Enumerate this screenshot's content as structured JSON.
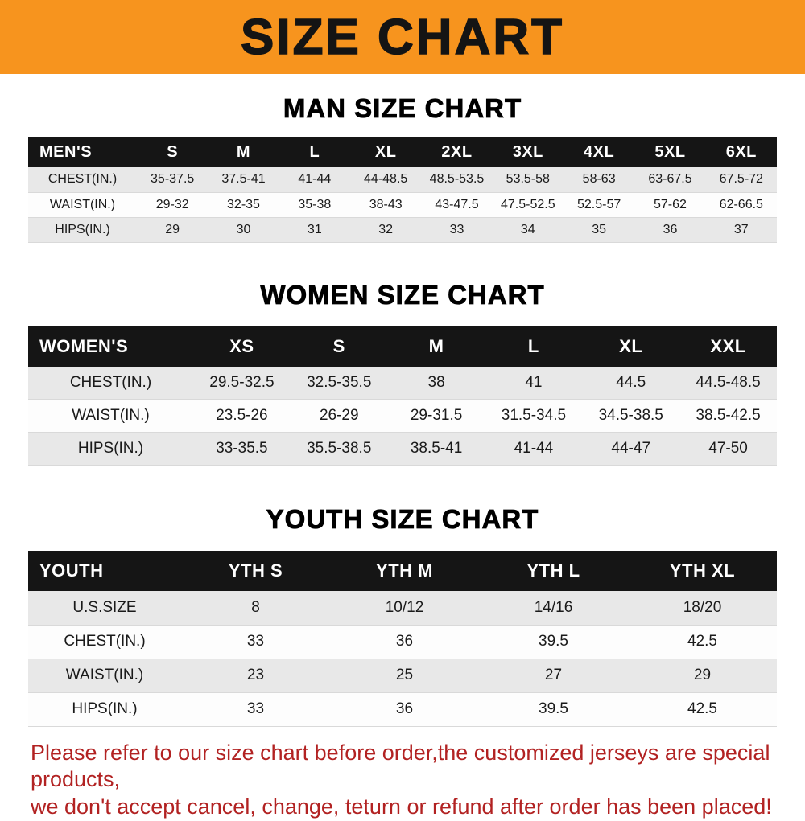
{
  "banner": {
    "title": "SIZE CHART"
  },
  "colors": {
    "banner_bg": "#f7941e",
    "table_header_bg": "#151515",
    "row_alt_bg": "#e8e8e8",
    "disclaimer_text": "#b22222"
  },
  "sections": {
    "men": {
      "heading": "MAN SIZE CHART",
      "table": {
        "header": [
          "MEN'S",
          "S",
          "M",
          "L",
          "XL",
          "2XL",
          "3XL",
          "4XL",
          "5XL",
          "6XL"
        ],
        "rows": [
          [
            "CHEST(IN.)",
            "35-37.5",
            "37.5-41",
            "41-44",
            "44-48.5",
            "48.5-53.5",
            "53.5-58",
            "58-63",
            "63-67.5",
            "67.5-72"
          ],
          [
            "WAIST(IN.)",
            "29-32",
            "32-35",
            "35-38",
            "38-43",
            "43-47.5",
            "47.5-52.5",
            "52.5-57",
            "57-62",
            "62-66.5"
          ],
          [
            "HIPS(IN.)",
            "29",
            "30",
            "31",
            "32",
            "33",
            "34",
            "35",
            "36",
            "37"
          ]
        ]
      }
    },
    "women": {
      "heading": "WOMEN SIZE CHART",
      "table": {
        "header": [
          "WOMEN'S",
          "XS",
          "S",
          "M",
          "L",
          "XL",
          "XXL"
        ],
        "rows": [
          [
            "CHEST(IN.)",
            "29.5-32.5",
            "32.5-35.5",
            "38",
            "41",
            "44.5",
            "44.5-48.5"
          ],
          [
            "WAIST(IN.)",
            "23.5-26",
            "26-29",
            "29-31.5",
            "31.5-34.5",
            "34.5-38.5",
            "38.5-42.5"
          ],
          [
            "HIPS(IN.)",
            "33-35.5",
            "35.5-38.5",
            "38.5-41",
            "41-44",
            "44-47",
            "47-50"
          ]
        ]
      }
    },
    "youth": {
      "heading": "YOUTH SIZE CHART",
      "table": {
        "header": [
          "YOUTH",
          "YTH S",
          "YTH M",
          "YTH L",
          "YTH XL"
        ],
        "rows": [
          [
            "U.S.SIZE",
            "8",
            "10/12",
            "14/16",
            "18/20"
          ],
          [
            "CHEST(IN.)",
            "33",
            "36",
            "39.5",
            "42.5"
          ],
          [
            "WAIST(IN.)",
            "23",
            "25",
            "27",
            "29"
          ],
          [
            "HIPS(IN.)",
            "33",
            "36",
            "39.5",
            "42.5"
          ]
        ]
      }
    }
  },
  "footer": {
    "line1": "Please refer to our size chart before order,the customized jerseys are special products,",
    "line2": "we don't accept cancel, change, teturn or refund after order has been placed!"
  }
}
